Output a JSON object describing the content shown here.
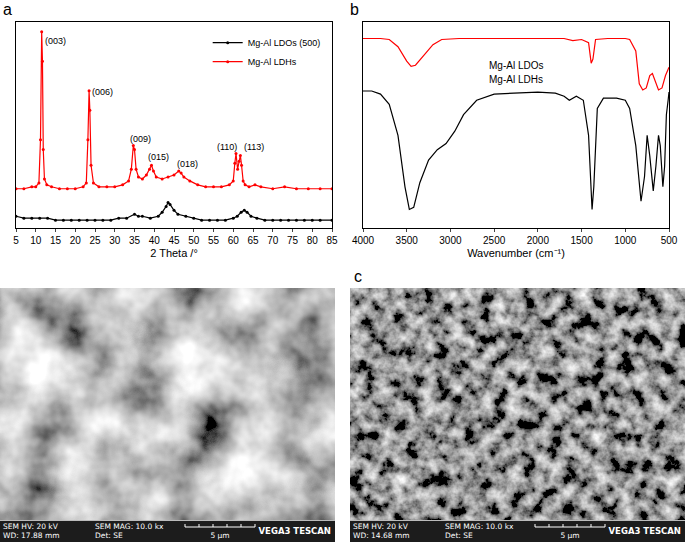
{
  "chart_data": [
    {
      "type": "line",
      "panel": "a",
      "xlabel": "2 Theta /°",
      "xlim": [
        5,
        85
      ],
      "xticks": [
        5,
        10,
        15,
        20,
        25,
        30,
        35,
        40,
        45,
        50,
        55,
        60,
        65,
        70,
        75,
        80,
        85
      ],
      "ylim": [
        0,
        105
      ],
      "tick_labels": "x",
      "grid": false,
      "legend": "upper right",
      "series": [
        {
          "name": "Mg-Al LDOs (500)",
          "color": "#000000",
          "marker": "circle",
          "x": [
            5,
            7,
            9,
            11,
            13,
            15,
            17,
            19,
            21,
            23,
            25,
            27,
            29,
            31,
            33,
            35,
            36,
            37,
            39,
            41,
            42,
            43,
            43.5,
            44,
            45,
            46,
            48,
            50,
            52,
            54,
            56,
            58,
            60,
            61,
            62,
            62.8,
            63.5,
            64.5,
            66,
            68,
            70,
            72,
            74,
            76,
            78,
            80,
            82,
            85
          ],
          "values": [
            6,
            5,
            5,
            5,
            5,
            4,
            4,
            4,
            4,
            4,
            4,
            4,
            4,
            5,
            5,
            7,
            6,
            6,
            5,
            6,
            8,
            11,
            13,
            12,
            9,
            7,
            6,
            5,
            4,
            4,
            4,
            4,
            5,
            6,
            8,
            9,
            8,
            6,
            5,
            4,
            4,
            4,
            4,
            4,
            4,
            4,
            4,
            4
          ]
        },
        {
          "name": "Mg-Al LDHs",
          "color": "#ff0000",
          "marker": "circle",
          "x": [
            5,
            7,
            9,
            10,
            10.8,
            11.2,
            11.5,
            11.7,
            11.9,
            12.2,
            12.8,
            14,
            16,
            18,
            20,
            22,
            22.8,
            23.2,
            23.5,
            23.7,
            24.0,
            24.6,
            26,
            28,
            30,
            32,
            33.5,
            34.2,
            34.7,
            35.0,
            35.4,
            36,
            37,
            38,
            38.8,
            39.3,
            39.8,
            40.5,
            42,
            43.5,
            45,
            46.2,
            46.8,
            47.5,
            49,
            51,
            53,
            55,
            57,
            59,
            60,
            60.4,
            60.7,
            61.1,
            61.5,
            61.8,
            62.1,
            62.5,
            63,
            64,
            65.5,
            67,
            70,
            73,
            76,
            79,
            82,
            85
          ],
          "values": [
            20,
            20,
            21,
            21,
            23,
            45,
            100,
            85,
            40,
            25,
            22,
            21,
            20,
            20,
            20,
            21,
            23,
            45,
            70,
            60,
            32,
            23,
            21,
            21,
            21,
            22,
            24,
            30,
            42,
            40,
            30,
            26,
            25,
            27,
            30,
            32,
            29,
            26,
            25,
            26,
            27,
            29,
            28,
            26,
            24,
            22,
            21,
            21,
            21,
            22,
            24,
            33,
            38,
            30,
            34,
            37,
            32,
            24,
            22,
            21,
            22,
            21,
            20,
            21,
            20,
            20,
            20,
            20
          ]
        }
      ],
      "annotations": [
        {
          "text": "(003)",
          "x": 15,
          "y": 99
        },
        {
          "text": "(006)",
          "x": 27,
          "y": 73
        },
        {
          "text": "(009)",
          "x": 36.5,
          "y": 49
        },
        {
          "text": "(015)",
          "x": 41,
          "y": 40
        },
        {
          "text": "(018)",
          "x": 48.5,
          "y": 36
        },
        {
          "text": "(110)",
          "x": 58.3,
          "y": 45
        },
        {
          "text": "(113)",
          "x": 65.2,
          "y": 45
        }
      ]
    },
    {
      "type": "line",
      "panel": "b",
      "xlabel": "Wavenumber (cm⁻¹)",
      "xlim": [
        4000,
        500
      ],
      "xticks": [
        4000,
        3500,
        3000,
        2500,
        2000,
        1500,
        1000,
        500
      ],
      "ylim": [
        0,
        100
      ],
      "tick_labels": "x",
      "grid": false,
      "series": [
        {
          "name": "Mg-Al LDOs",
          "color": "#ff0000",
          "x": [
            4000,
            3800,
            3700,
            3600,
            3500,
            3450,
            3400,
            3300,
            3200,
            3100,
            2900,
            2500,
            2000,
            1700,
            1600,
            1500,
            1420,
            1390,
            1370,
            1340,
            1200,
            1000,
            950,
            880,
            840,
            800,
            760,
            720,
            690,
            650,
            620,
            580,
            540,
            500
          ],
          "values": [
            92,
            92,
            91.5,
            88,
            81,
            78.5,
            79,
            84,
            89,
            91.5,
            92,
            92,
            92,
            92,
            91,
            91.5,
            90,
            80,
            82,
            91.5,
            92,
            92,
            91.5,
            86,
            70,
            67,
            68,
            74,
            75,
            70,
            67,
            68,
            74,
            78
          ]
        },
        {
          "name": "Mg-Al LDHs",
          "color": "#000000",
          "x": [
            4000,
            3900,
            3800,
            3700,
            3600,
            3520,
            3470,
            3420,
            3350,
            3250,
            3150,
            3050,
            2950,
            2850,
            2700,
            2500,
            2000,
            1800,
            1700,
            1640,
            1560,
            1480,
            1420,
            1380,
            1360,
            1320,
            1250,
            1100,
            1000,
            950,
            880,
            820,
            780,
            750,
            720,
            680,
            650,
            620,
            600,
            570,
            550,
            530,
            510,
            500
          ],
          "values": [
            66.5,
            66.5,
            65,
            60,
            45,
            20,
            9,
            10,
            22,
            33,
            38,
            41,
            47,
            55,
            62,
            65,
            66,
            65.5,
            64,
            62,
            64,
            62,
            45,
            9,
            20,
            58,
            63,
            63,
            62,
            58,
            40,
            13,
            25,
            45,
            35,
            18,
            30,
            45,
            40,
            20,
            30,
            55,
            62,
            66
          ]
        }
      ]
    }
  ],
  "images": [
    {
      "info": {
        "hv": "SEM HV: 20 kV",
        "mag": "SEM MAG: 10.0 kx",
        "wd": "WD: 17.88 mm",
        "det": "Det: SE",
        "scale": "5 μm",
        "brand": "VEGA3 TESCAN"
      }
    },
    {
      "panel": "c",
      "info": {
        "hv": "SEM HV: 20 kV",
        "mag": "SEM MAG: 10.0 kx",
        "wd": "WD: 14.68 mm",
        "det": "Det: SE",
        "scale": "5 μm",
        "brand": "VEGA3 TESCAN"
      }
    }
  ]
}
